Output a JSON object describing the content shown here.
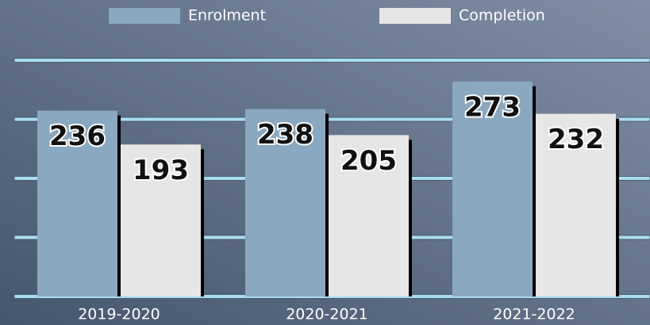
{
  "chart_data": {
    "type": "bar",
    "categories": [
      "2019-2020",
      "2020-2021",
      "2021-2022"
    ],
    "series": [
      {
        "name": "Enrolment",
        "color": "#8aa8c0",
        "values": [
          236,
          238,
          273
        ]
      },
      {
        "name": "Completion",
        "color": "#e6e6e6",
        "values": [
          193,
          205,
          232
        ]
      }
    ],
    "ylim": [
      0,
      300
    ],
    "yticks": [
      0,
      75,
      150,
      225,
      300
    ],
    "grid": true
  }
}
